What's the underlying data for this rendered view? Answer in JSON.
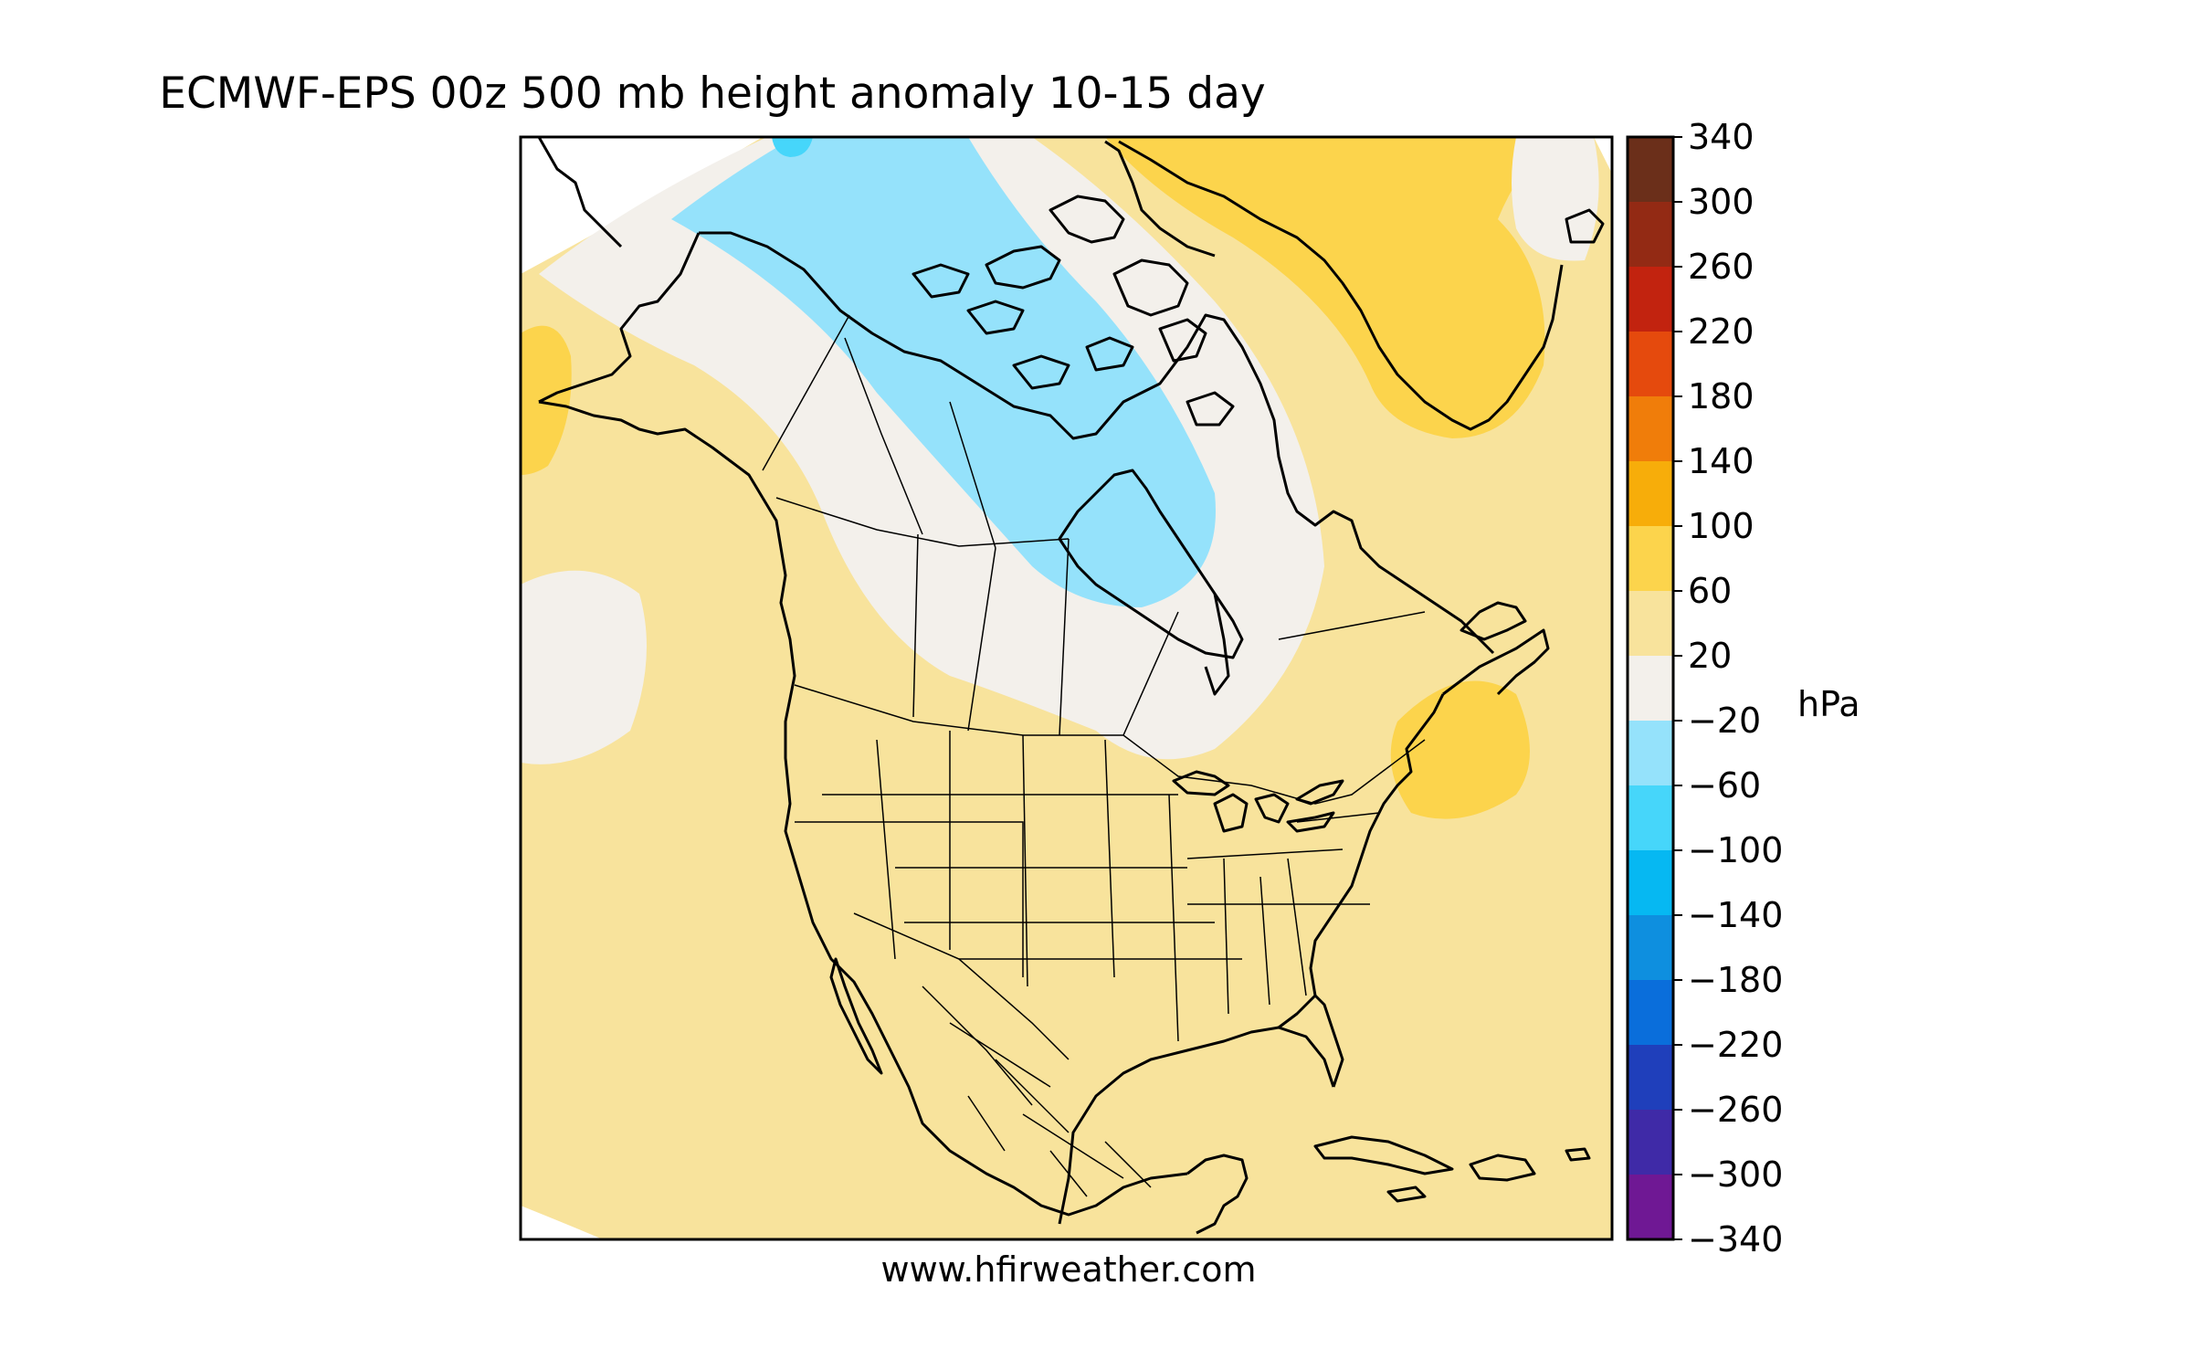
{
  "title": "ECMWF-EPS 00z 500 mb height anomaly 10-15 day",
  "footer": "www.hfirweather.com",
  "colorbar": {
    "unit": "hPa",
    "ticks": [
      "340",
      "300",
      "260",
      "220",
      "180",
      "140",
      "100",
      "60",
      "20",
      "−20",
      "−60",
      "−100",
      "−140",
      "−180",
      "−220",
      "−260",
      "−300",
      "−340"
    ],
    "colors": [
      "#6b2f1a",
      "#932a14",
      "#c2230f",
      "#e54a0d",
      "#f07d0a",
      "#f7ad0a",
      "#fcd44c",
      "#f8e39c",
      "#f3f0eb",
      "#95e2fb",
      "#46d6fa",
      "#06b8f2",
      "#0e8fdf",
      "#0a6edb",
      "#1f3fbb",
      "#3f2aa7",
      "#6f1894"
    ]
  },
  "map": {
    "anomaly_colors": {
      "positive_20_60": "#f8e39c",
      "positive_60_100": "#fcd44c",
      "neutral": "#f3f0eb",
      "negative_20_60": "#95e2fb",
      "negative_60_100": "#46d6fa"
    }
  }
}
